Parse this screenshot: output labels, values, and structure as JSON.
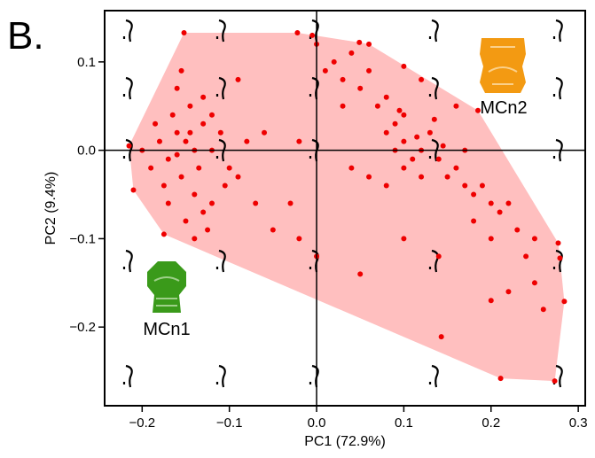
{
  "chart_data": {
    "type": "scatter",
    "panel_label": "B.",
    "xlabel": "PC1 (72.9%)",
    "ylabel": "PC2 (9.4%)",
    "annotations": [
      "MCn1",
      "MCn2"
    ],
    "color": "#ee0000",
    "hull_color": "#ffbfbf",
    "xlim": [
      -0.243,
      0.308
    ],
    "ylim": [
      -0.289,
      0.158
    ],
    "xticks": [
      {
        "value": -0.2,
        "label": "−0.2"
      },
      {
        "value": -0.1,
        "label": "−0.1"
      },
      {
        "value": 0,
        "label": "0.0"
      },
      0.1,
      0.2,
      0.3
    ],
    "yticks": [
      {
        "value": -0.2,
        "label": "−0.2"
      },
      {
        "value": -0.1,
        "label": "−0.1"
      },
      {
        "value": 0,
        "label": "0.0"
      },
      0.1
    ],
    "x": [
      -0.152,
      -0.022,
      -0.005,
      0.049,
      0.1,
      0.185,
      0.277,
      0.279,
      0.284,
      0.273,
      0.211,
      0.143,
      -0.175,
      -0.21,
      -0.215,
      -0.15,
      -0.16,
      -0.14,
      -0.17,
      -0.13,
      -0.155,
      -0.18,
      -0.12,
      -0.145,
      -0.165,
      -0.19,
      -0.14,
      -0.13,
      -0.15,
      -0.12,
      -0.17,
      -0.11,
      -0.1,
      -0.2,
      -0.16,
      -0.13,
      -0.155,
      -0.14,
      -0.125,
      -0.105,
      -0.09,
      -0.08,
      -0.185,
      -0.175,
      -0.135,
      -0.145,
      -0.16,
      -0.12,
      -0.07,
      -0.05,
      -0.03,
      -0.06,
      -0.02,
      -0.09,
      0.08,
      0.1,
      0.12,
      0.09,
      0.11,
      0.07,
      0.05,
      0.03,
      0.02,
      0.04,
      0.06,
      0.08,
      0.1,
      0.13,
      0.14,
      0.15,
      0.16,
      0.17,
      0.18,
      0.19,
      0.2,
      0.21,
      0.22,
      0.12,
      0.1,
      0.09,
      0.115,
      0.095,
      0.135,
      0.145,
      0,
      0.01,
      0.03,
      0.06,
      0.12,
      0.16,
      0.17,
      0.23,
      0.25,
      0.24,
      0.2,
      0.18,
      0.08,
      0.06,
      0.04,
      0,
      0.05,
      0.22,
      0.25,
      0.26,
      0.2,
      0.14,
      0.1,
      -0.02
    ],
    "values": [
      0.133,
      0.133,
      0.13,
      0.122,
      0.095,
      0.045,
      -0.105,
      -0.122,
      -0.171,
      -0.261,
      -0.258,
      -0.211,
      -0.095,
      -0.045,
      0.005,
      0.01,
      0.02,
      0,
      -0.01,
      0.03,
      -0.03,
      0.01,
      0,
      0.05,
      0.04,
      -0.02,
      -0.05,
      -0.07,
      -0.08,
      -0.06,
      -0.06,
      0.02,
      -0.02,
      0,
      0.07,
      0.06,
      0.09,
      -0.1,
      -0.09,
      -0.04,
      -0.03,
      0.01,
      0.03,
      -0.04,
      -0.02,
      0.02,
      -0.005,
      0.04,
      -0.06,
      -0.09,
      -0.06,
      0.02,
      0.01,
      0.08,
      0.02,
      0.01,
      0,
      0.03,
      -0.01,
      0.05,
      0.07,
      0.08,
      0.1,
      0.11,
      0.09,
      0.06,
      0.04,
      0.02,
      -0.01,
      -0.03,
      -0.02,
      -0.04,
      -0.05,
      -0.04,
      -0.06,
      -0.07,
      -0.06,
      -0.03,
      -0.02,
      0,
      0.015,
      0.045,
      0.035,
      0.005,
      0.12,
      0.09,
      0.05,
      0.12,
      0.08,
      0.05,
      0,
      -0.09,
      -0.1,
      -0.12,
      -0.1,
      -0.08,
      -0.04,
      -0.03,
      -0.02,
      -0.12,
      -0.14,
      -0.16,
      -0.15,
      -0.18,
      -0.17,
      -0.12,
      -0.1,
      -0.1
    ]
  }
}
